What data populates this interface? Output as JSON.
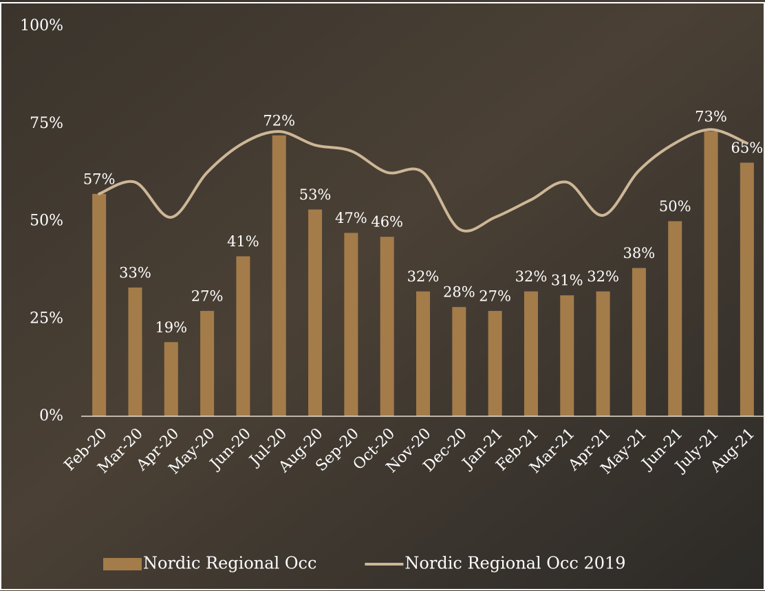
{
  "chart_data": {
    "type": "bar-line",
    "categories": [
      "Feb-20",
      "Mar-20",
      "Apr-20",
      "May-20",
      "Jun-20",
      "Jul-20",
      "Aug-20",
      "Sep-20",
      "Oct-20",
      "Nov-20",
      "Dec-20",
      "Jan-21",
      "Feb-21",
      "Mar-21",
      "Apr-21",
      "May-21",
      "Jun-21",
      "July-21",
      "Aug-21"
    ],
    "series": [
      {
        "name": "Nordic Regional Occ",
        "type": "bar",
        "color": "#a47c4a",
        "values": [
          57,
          33,
          19,
          27,
          41,
          72,
          53,
          47,
          46,
          32,
          28,
          27,
          32,
          31,
          32,
          38,
          50,
          73,
          65
        ],
        "value_labels": [
          "57%",
          "33%",
          "19%",
          "27%",
          "41%",
          "72%",
          "53%",
          "47%",
          "46%",
          "32%",
          "28%",
          "27%",
          "32%",
          "31%",
          "32%",
          "38%",
          "50%",
          "73%",
          "65%"
        ]
      },
      {
        "name": "Nordic Regional Occ 2019",
        "type": "line",
        "color": "#cdb797",
        "values": [
          57,
          60,
          51,
          62.5,
          70,
          73,
          69.5,
          68,
          62.5,
          62.5,
          48,
          51,
          55.5,
          60,
          51.5,
          63,
          70,
          73.5,
          70
        ]
      }
    ],
    "ylim": [
      0,
      100
    ],
    "yticks": [
      {
        "value": 0,
        "label": "0%"
      },
      {
        "value": 25,
        "label": "25%"
      },
      {
        "value": 50,
        "label": "50%"
      },
      {
        "value": 75,
        "label": "75%"
      },
      {
        "value": 100,
        "label": "100%"
      }
    ],
    "legend": "bottom"
  }
}
